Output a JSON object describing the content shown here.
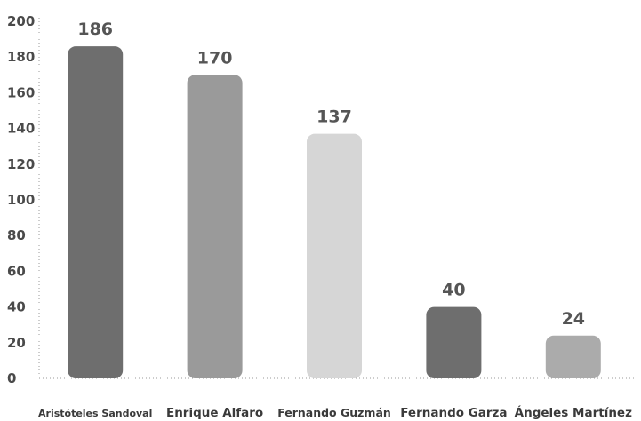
{
  "chart_data": {
    "type": "bar",
    "categories": [
      "Aristóteles Sandoval",
      "Enrique Alfaro",
      "Fernando Guzmán",
      "Fernando Garza",
      "Ángeles Martínez"
    ],
    "values": [
      186,
      170,
      137,
      40,
      24
    ],
    "data_labels": [
      "186",
      "170",
      "137",
      "40",
      "24"
    ],
    "bar_colors": [
      "#6e6e6e",
      "#9a9a9a",
      "#d6d6d6",
      "#6e6e6e",
      "#ababab"
    ],
    "ylim": [
      0,
      200
    ],
    "yticks": [
      "0",
      "20",
      "40",
      "60",
      "80",
      "100",
      "120",
      "140",
      "160",
      "180",
      "200"
    ],
    "title": "",
    "xlabel": "",
    "ylabel": "",
    "grid": false,
    "axis_style": "dotted"
  }
}
